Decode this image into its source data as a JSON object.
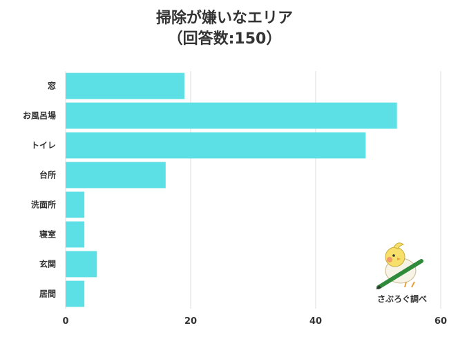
{
  "title": "掃除が嫌いなエリア",
  "subtitle": "（回答数:150）",
  "credit": "さぶろぐ調べ",
  "chart_data": {
    "type": "bar",
    "orientation": "horizontal",
    "title": "掃除が嫌いなエリア",
    "subtitle": "（回答数:150）",
    "categories": [
      "窓",
      "お風呂場",
      "トイレ",
      "台所",
      "洗面所",
      "寝室",
      "玄関",
      "居間"
    ],
    "values": [
      19,
      53,
      48,
      16,
      3,
      3,
      5,
      3
    ],
    "xlim": [
      0,
      60
    ],
    "xticks": [
      0,
      20,
      40,
      60
    ],
    "grid": true,
    "bar_color": "#5ce0e6",
    "grid_color": "#dddddd",
    "xlabel": "",
    "ylabel": ""
  }
}
